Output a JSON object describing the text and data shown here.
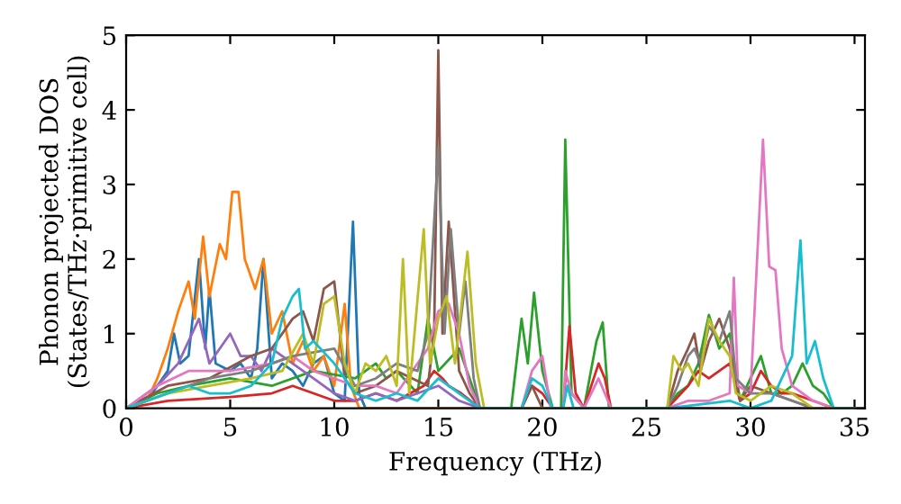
{
  "chart_data": {
    "type": "line",
    "xlabel": "Frequency (THz)",
    "ylabel": "Phonon projected DOS\n(States/THz·primitive cell)",
    "xlim": [
      0,
      35.5
    ],
    "ylim": [
      0,
      5
    ],
    "xticks": [
      0,
      5,
      10,
      15,
      20,
      25,
      30,
      35
    ],
    "yticks": [
      0,
      1,
      2,
      3,
      4,
      5
    ],
    "marker": "none",
    "line_style": "solid",
    "series": [
      {
        "color": "#1f77b4",
        "x": [
          0,
          1,
          1.5,
          2,
          2.3,
          2.6,
          3,
          3.5,
          3.8,
          4,
          4.3,
          5,
          5.5,
          6,
          6.3,
          6.6,
          7,
          7.5,
          8,
          8.5,
          9,
          9.5,
          10,
          10.5,
          10.9,
          11.2,
          11.5,
          35
        ],
        "values": [
          0,
          0.1,
          0.3,
          0.5,
          1.0,
          0.6,
          0.7,
          2.0,
          0.8,
          1.6,
          0.6,
          0.5,
          0.6,
          0.4,
          0.8,
          2.0,
          0.4,
          0.6,
          0.5,
          0.3,
          0.6,
          0.7,
          0.2,
          0.1,
          2.5,
          0.2,
          0,
          0
        ]
      },
      {
        "color": "#ff7f0e",
        "x": [
          0,
          1,
          1.5,
          2,
          2.5,
          3,
          3.3,
          3.7,
          4,
          4.5,
          4.8,
          5.1,
          5.4,
          5.7,
          6.2,
          6.6,
          7,
          7.5,
          8,
          8.5,
          9,
          9.5,
          10,
          10.5,
          10.8,
          11.2,
          35
        ],
        "values": [
          0,
          0.1,
          0.4,
          0.8,
          1.3,
          1.7,
          1.2,
          2.3,
          1.5,
          2.2,
          2.0,
          2.9,
          2.9,
          2.0,
          1.6,
          2.0,
          1.0,
          1.3,
          0.6,
          0.9,
          0.5,
          0.7,
          0.3,
          1.4,
          0.3,
          0,
          0
        ]
      },
      {
        "color": "#2ca02c",
        "x": [
          0,
          1.5,
          3,
          5,
          7,
          9,
          11,
          11.5,
          12,
          12.5,
          13,
          14,
          14.5,
          15,
          16,
          17,
          18.5,
          19,
          19.3,
          19.6,
          20,
          20.5,
          20.9,
          21.1,
          21.4,
          22,
          22.6,
          22.9,
          23.2,
          26,
          26.5,
          27,
          27.5,
          28,
          28.5,
          29,
          29.5,
          30,
          30.5,
          31,
          31.5,
          32,
          32.5,
          33,
          33.5,
          34
        ],
        "values": [
          0,
          0.2,
          0.3,
          0.4,
          0.3,
          0.5,
          0.4,
          0.5,
          0.6,
          0.4,
          0.5,
          0.2,
          1.2,
          0.5,
          0.8,
          0,
          0,
          1.2,
          0.6,
          1.55,
          0.5,
          0,
          0,
          3.6,
          0.2,
          0,
          0.9,
          1.15,
          0,
          0,
          0.2,
          0.3,
          0.6,
          1.25,
          0.8,
          1.0,
          0.1,
          0.4,
          0.7,
          0.2,
          0.2,
          0.3,
          0.6,
          0.3,
          0.2,
          0
        ]
      },
      {
        "color": "#d62728",
        "x": [
          0,
          2,
          5,
          7,
          8,
          9,
          10,
          11,
          12,
          13,
          14.3,
          14.8,
          15.2,
          15.5,
          16.1,
          17,
          19,
          19.5,
          20,
          20.5,
          21,
          21.3,
          21.6,
          22,
          22.7,
          23,
          23.3,
          26,
          27,
          27.5,
          28,
          28.5,
          29,
          29.5,
          30,
          30.5,
          31,
          31.5,
          32,
          33,
          34
        ],
        "values": [
          0,
          0.1,
          0.15,
          0.2,
          0.3,
          0.2,
          0.1,
          0.1,
          0.2,
          0.1,
          0.3,
          0.5,
          0.4,
          0.3,
          0.2,
          0,
          0,
          0.3,
          0.2,
          0,
          0,
          1.1,
          0.2,
          0,
          0.6,
          0.4,
          0,
          0,
          0.3,
          0.5,
          0.4,
          0.5,
          0.6,
          0.1,
          0.2,
          0.5,
          0.3,
          0.2,
          0.2,
          0.1,
          0
        ]
      },
      {
        "color": "#9467bd",
        "x": [
          0,
          1.5,
          2.5,
          3.5,
          4,
          4.5,
          5,
          5.5,
          6,
          6.5,
          7,
          8,
          9,
          10,
          11,
          12,
          13,
          14,
          15,
          16,
          17,
          35
        ],
        "values": [
          0,
          0.3,
          0.6,
          1.2,
          0.6,
          0.8,
          1.0,
          0.7,
          0.7,
          0.5,
          0.8,
          0.6,
          0.4,
          0.2,
          0.1,
          0.2,
          0.1,
          0.2,
          0.3,
          0.1,
          0,
          0
        ]
      },
      {
        "color": "#8c564b",
        "x": [
          0,
          2,
          4,
          6,
          7,
          8,
          8.5,
          9,
          9.5,
          10,
          10.5,
          11,
          12,
          13,
          14.5,
          14.8,
          15,
          15.2,
          15.5,
          16,
          16.5,
          17,
          19,
          19.5,
          20,
          26,
          26.5,
          27,
          27.3,
          27.6,
          28,
          28.5,
          29,
          29.5,
          30,
          31,
          32,
          33,
          35
        ],
        "values": [
          0,
          0.3,
          0.4,
          0.7,
          0.8,
          1.2,
          1.3,
          0.9,
          1.6,
          1.7,
          0.4,
          0.2,
          0.3,
          0.5,
          0.3,
          1.0,
          4.8,
          1.0,
          2.5,
          0.5,
          0.2,
          0,
          0,
          0.3,
          0,
          0,
          0.5,
          0.8,
          1.0,
          0.5,
          0.9,
          1.2,
          0.8,
          0.1,
          0.3,
          0.2,
          0.1,
          0,
          0
        ]
      },
      {
        "color": "#e377c2",
        "x": [
          0,
          1.5,
          3,
          5,
          7,
          8,
          9,
          10,
          11,
          12,
          13,
          14.5,
          15,
          15.5,
          16,
          16.5,
          17,
          19,
          19.5,
          20,
          20.4,
          21,
          21.1,
          21.4,
          22,
          22.7,
          23,
          23.3,
          26,
          27,
          28,
          29,
          29.2,
          29.4,
          30,
          30.6,
          30.9,
          31.2,
          31.5,
          32,
          33,
          34
        ],
        "values": [
          0,
          0.3,
          0.5,
          0.5,
          0.6,
          0.7,
          0.5,
          0.4,
          0.3,
          0.3,
          0.2,
          0.8,
          1.3,
          1.4,
          1.0,
          0.3,
          0,
          0,
          0.5,
          0.7,
          0,
          0,
          0.5,
          0.2,
          0,
          0.4,
          0.2,
          0,
          0,
          0.1,
          0.1,
          0.2,
          1.75,
          0.3,
          0.2,
          3.6,
          1.9,
          1.85,
          0.8,
          0.3,
          0.1,
          0
        ]
      },
      {
        "color": "#7f7f7f",
        "x": [
          0,
          2,
          4,
          6,
          8,
          10,
          11,
          12,
          13,
          14,
          14.5,
          15,
          15.3,
          15.6,
          16,
          16.3,
          16.7,
          17,
          26,
          26.5,
          27,
          27.3,
          27.6,
          28,
          28.5,
          29,
          29.3,
          30,
          31,
          32,
          33,
          35
        ],
        "values": [
          0,
          0.2,
          0.4,
          0.5,
          0.7,
          0.8,
          0.3,
          0.4,
          0.6,
          0.5,
          1.0,
          3.5,
          1.0,
          2.4,
          1.0,
          1.7,
          0.4,
          0,
          0,
          0.3,
          0.7,
          0.8,
          0.6,
          1.1,
          0.9,
          1.3,
          0.4,
          0.2,
          0.2,
          0.1,
          0,
          0
        ]
      },
      {
        "color": "#bcbd22",
        "x": [
          0,
          2,
          4,
          6,
          7.5,
          8.5,
          9,
          9.5,
          10,
          10.5,
          11,
          11.5,
          12,
          12.5,
          13,
          13.3,
          13.6,
          14.3,
          14.6,
          15,
          15.4,
          15.8,
          16.4,
          16.8,
          17.2,
          26,
          26.3,
          26.7,
          27,
          27.5,
          28,
          28.5,
          29,
          29.3,
          30,
          31,
          32,
          33,
          35
        ],
        "values": [
          0,
          0.2,
          0.3,
          0.4,
          0.5,
          1.0,
          0.6,
          1.4,
          1.5,
          0.6,
          0.2,
          0.6,
          0.5,
          0.7,
          0.3,
          2.0,
          0.2,
          2.4,
          0.6,
          1.2,
          1.5,
          0.6,
          2.1,
          0.6,
          0,
          0,
          0.7,
          0.5,
          0.6,
          0.3,
          1.2,
          0.9,
          0.7,
          0.2,
          0.1,
          0.3,
          0.2,
          0,
          0
        ]
      },
      {
        "color": "#17becf",
        "x": [
          0,
          2,
          3,
          4,
          5,
          6,
          7,
          7.5,
          8,
          8.3,
          8.6,
          9,
          10,
          11,
          12,
          13,
          14,
          15,
          16,
          17,
          19,
          19.5,
          20,
          20.5,
          21,
          21.2,
          21.5,
          26,
          29,
          30,
          31,
          32,
          32.4,
          32.7,
          33.1,
          33.5,
          34,
          35
        ],
        "values": [
          0,
          0.2,
          0.3,
          0.2,
          0.2,
          0.3,
          0.6,
          1.2,
          1.5,
          1.6,
          0.8,
          0.9,
          0.6,
          0.2,
          0.1,
          0.2,
          0.1,
          0.4,
          0.2,
          0,
          0,
          0.4,
          0.3,
          0,
          0,
          0.3,
          0,
          0,
          0.1,
          0,
          0.1,
          0.7,
          2.25,
          0.6,
          0.9,
          0.4,
          0,
          0
        ]
      }
    ]
  }
}
